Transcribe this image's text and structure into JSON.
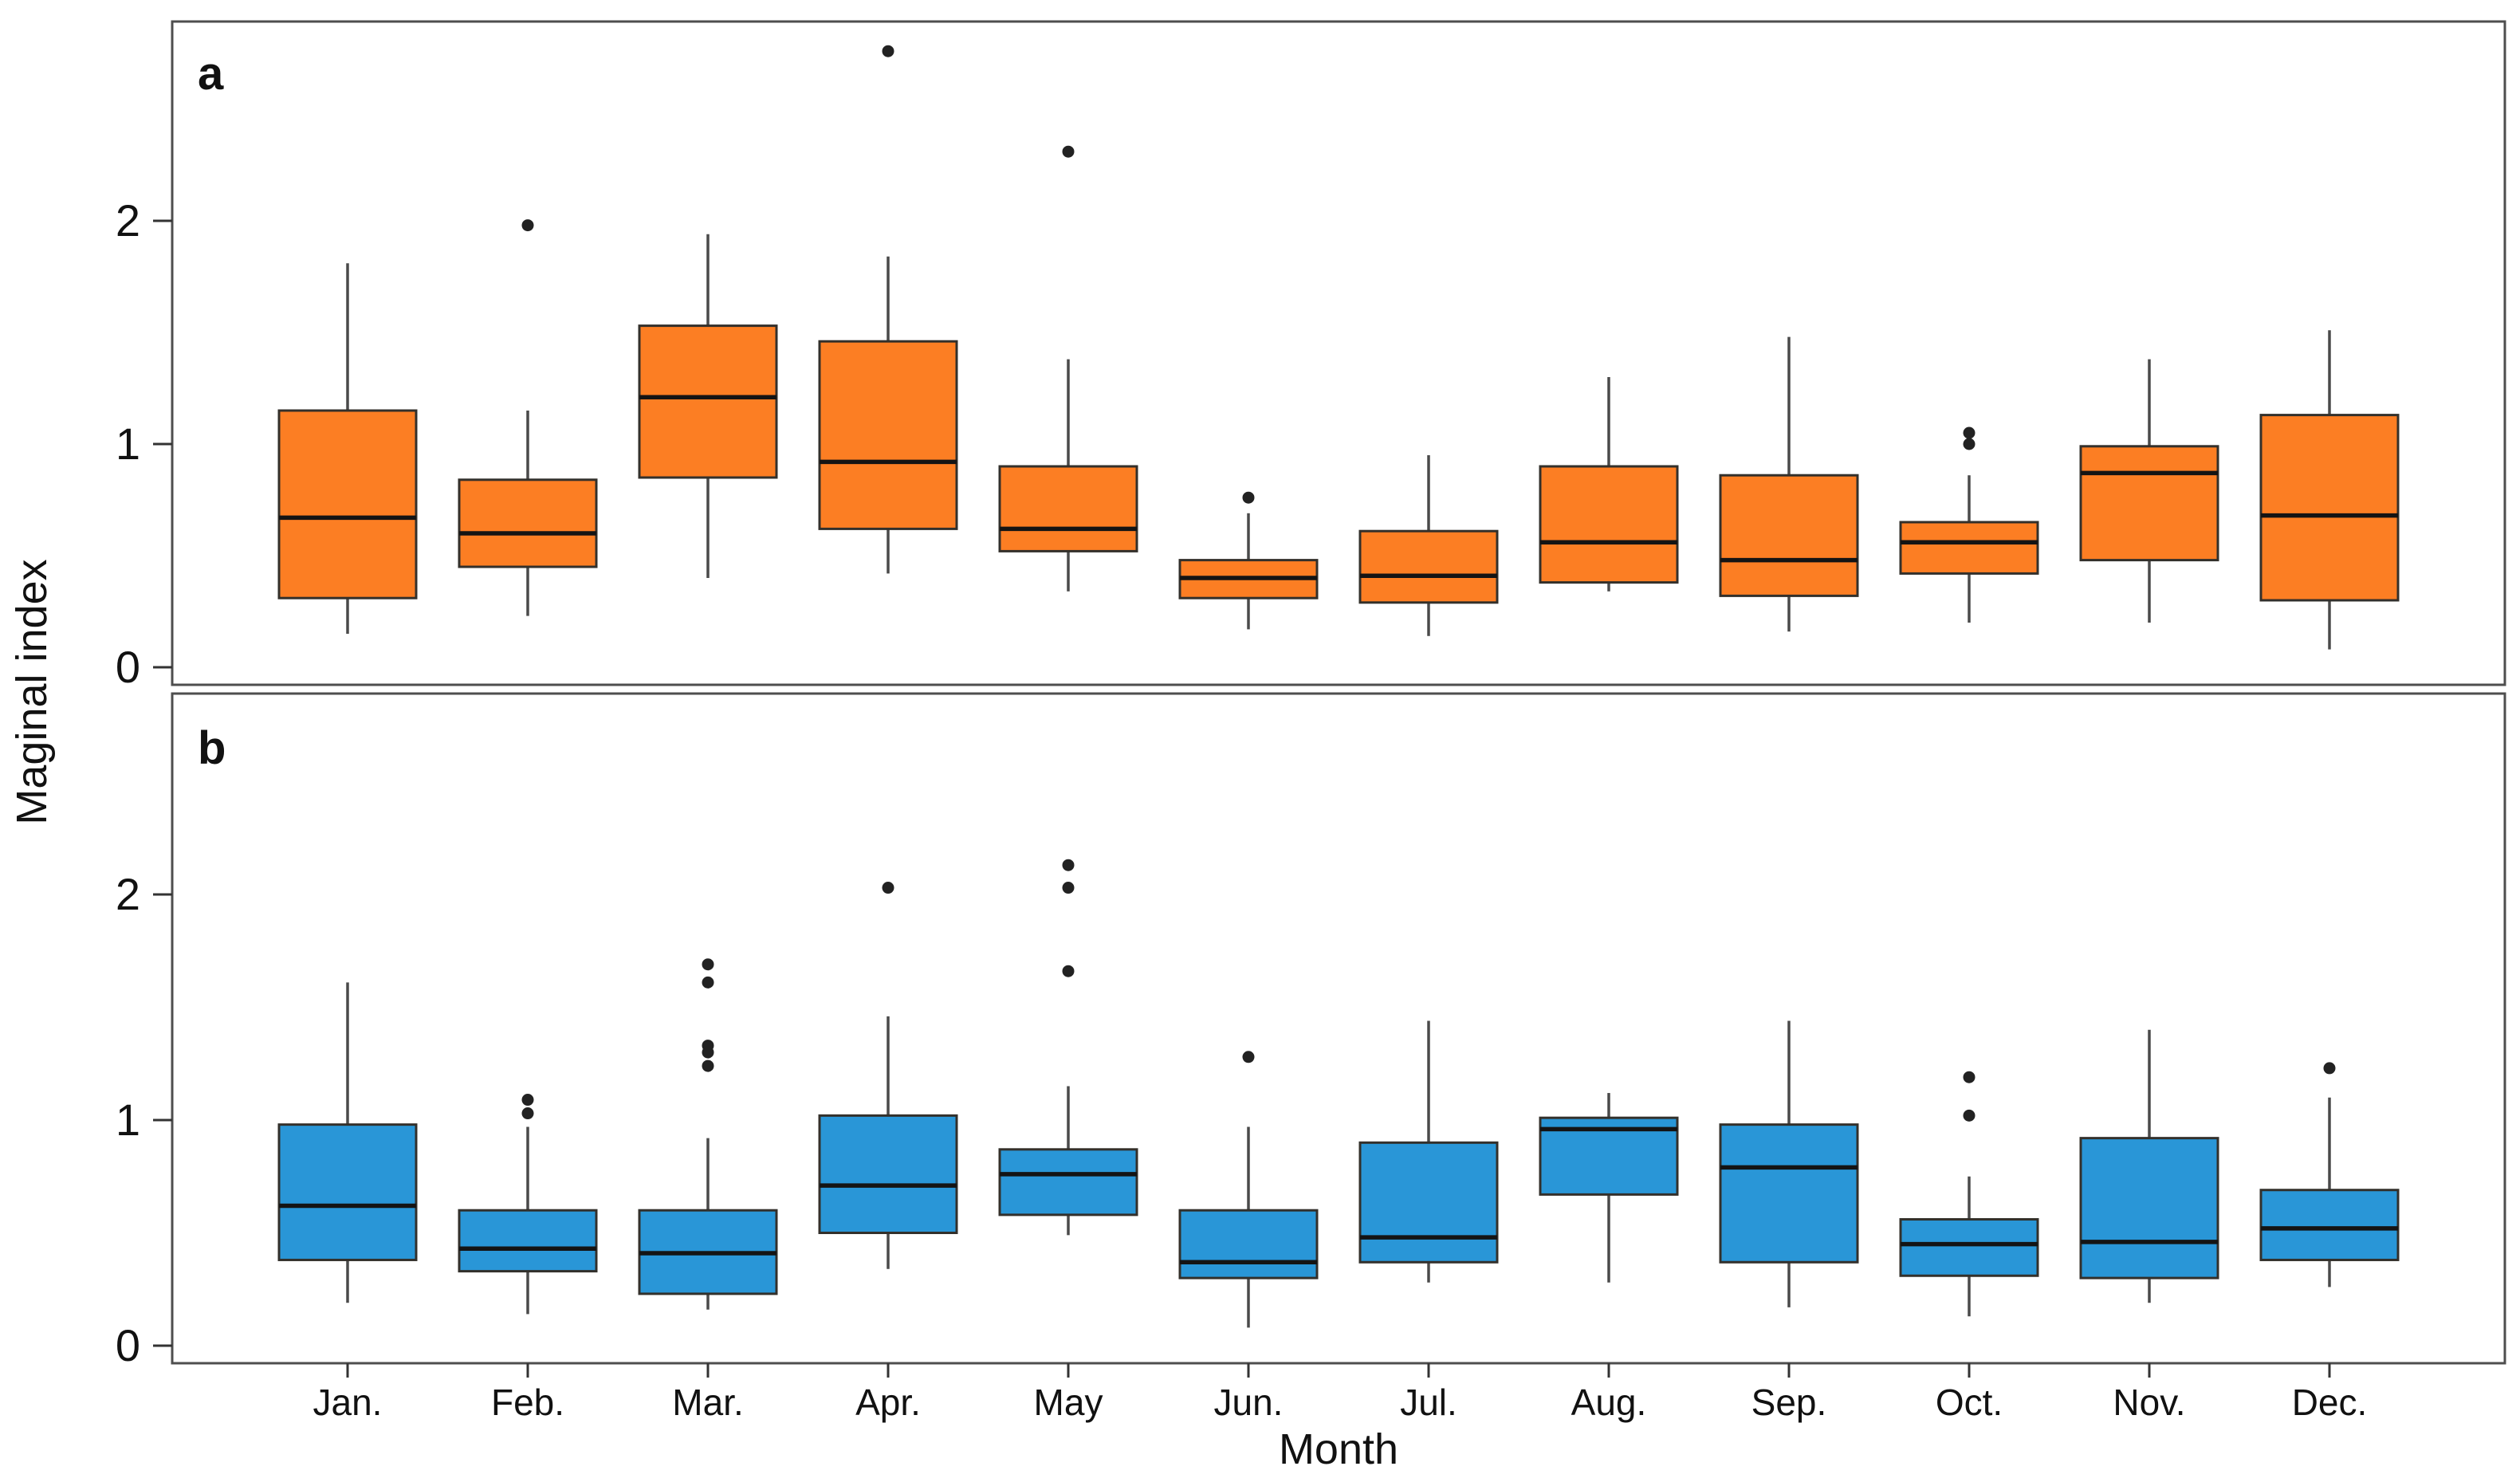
{
  "figure": {
    "y_axis_label": "Maginal index",
    "x_axis_label": "Month",
    "background": "#ffffff",
    "panel_border_color": "#4e4e4e",
    "whisker_color": "#4a4a4a",
    "box_stroke_color": "#33302b",
    "median_color": "#141414",
    "outlier_color": "#222222",
    "y_tick_labels": [
      "0",
      "1",
      "2"
    ],
    "months": [
      "Jan.",
      "Feb.",
      "Mar.",
      "Apr.",
      "May",
      "Jun.",
      "Jul.",
      "Aug.",
      "Sep.",
      "Oct.",
      "Nov.",
      "Dec."
    ]
  },
  "chart_data": [
    {
      "type": "box",
      "panel_label": "a",
      "fill_color": "#FC7E23",
      "xlabel": "Month",
      "ylabel": "Maginal index",
      "ylim": [
        -0.08,
        2.9
      ],
      "yticks": [
        0,
        1,
        2
      ],
      "grid": false,
      "legend": "none",
      "categories": [
        "Jan.",
        "Feb.",
        "Mar.",
        "Apr.",
        "May",
        "Jun.",
        "Jul.",
        "Aug.",
        "Sep.",
        "Oct.",
        "Nov.",
        "Dec."
      ],
      "boxes": [
        {
          "category": "Jan.",
          "whisker_low": 0.15,
          "q1": 0.31,
          "median": 0.67,
          "q3": 1.15,
          "whisker_high": 1.81,
          "outliers": []
        },
        {
          "category": "Feb.",
          "whisker_low": 0.23,
          "q1": 0.45,
          "median": 0.6,
          "q3": 0.84,
          "whisker_high": 1.15,
          "outliers": [
            1.98
          ]
        },
        {
          "category": "Mar.",
          "whisker_low": 0.4,
          "q1": 0.85,
          "median": 1.21,
          "q3": 1.53,
          "whisker_high": 1.94,
          "outliers": []
        },
        {
          "category": "Apr.",
          "whisker_low": 0.42,
          "q1": 0.62,
          "median": 0.92,
          "q3": 1.46,
          "whisker_high": 1.84,
          "outliers": [
            2.76
          ]
        },
        {
          "category": "May",
          "whisker_low": 0.34,
          "q1": 0.52,
          "median": 0.62,
          "q3": 0.9,
          "whisker_high": 1.38,
          "outliers": [
            2.31
          ]
        },
        {
          "category": "Jun.",
          "whisker_low": 0.17,
          "q1": 0.31,
          "median": 0.4,
          "q3": 0.48,
          "whisker_high": 0.69,
          "outliers": [
            0.76
          ]
        },
        {
          "category": "Jul.",
          "whisker_low": 0.14,
          "q1": 0.29,
          "median": 0.41,
          "q3": 0.61,
          "whisker_high": 0.95,
          "outliers": []
        },
        {
          "category": "Aug.",
          "whisker_low": 0.34,
          "q1": 0.38,
          "median": 0.56,
          "q3": 0.9,
          "whisker_high": 1.3,
          "outliers": []
        },
        {
          "category": "Sep.",
          "whisker_low": 0.16,
          "q1": 0.32,
          "median": 0.48,
          "q3": 0.86,
          "whisker_high": 1.48,
          "outliers": []
        },
        {
          "category": "Oct.",
          "whisker_low": 0.2,
          "q1": 0.42,
          "median": 0.56,
          "q3": 0.65,
          "whisker_high": 0.86,
          "outliers": [
            1.0,
            1.05
          ]
        },
        {
          "category": "Nov.",
          "whisker_low": 0.2,
          "q1": 0.48,
          "median": 0.87,
          "q3": 0.99,
          "whisker_high": 1.38,
          "outliers": []
        },
        {
          "category": "Dec.",
          "whisker_low": 0.08,
          "q1": 0.3,
          "median": 0.68,
          "q3": 1.13,
          "whisker_high": 1.51,
          "outliers": []
        }
      ]
    },
    {
      "type": "box",
      "panel_label": "b",
      "fill_color": "#2996D7",
      "xlabel": "Month",
      "ylabel": "Maginal index",
      "ylim": [
        -0.08,
        2.9
      ],
      "yticks": [
        0,
        1,
        2
      ],
      "grid": false,
      "legend": "none",
      "categories": [
        "Jan.",
        "Feb.",
        "Mar.",
        "Apr.",
        "May",
        "Jun.",
        "Jul.",
        "Aug.",
        "Sep.",
        "Oct.",
        "Nov.",
        "Dec."
      ],
      "boxes": [
        {
          "category": "Jan.",
          "whisker_low": 0.19,
          "q1": 0.38,
          "median": 0.62,
          "q3": 0.98,
          "whisker_high": 1.61,
          "outliers": []
        },
        {
          "category": "Feb.",
          "whisker_low": 0.14,
          "q1": 0.33,
          "median": 0.43,
          "q3": 0.6,
          "whisker_high": 0.97,
          "outliers": [
            1.09,
            1.03
          ]
        },
        {
          "category": "Mar.",
          "whisker_low": 0.16,
          "q1": 0.23,
          "median": 0.41,
          "q3": 0.6,
          "whisker_high": 0.92,
          "outliers": [
            1.69,
            1.61,
            1.33,
            1.3,
            1.24
          ]
        },
        {
          "category": "Apr.",
          "whisker_low": 0.34,
          "q1": 0.5,
          "median": 0.71,
          "q3": 1.02,
          "whisker_high": 1.46,
          "outliers": [
            2.03
          ]
        },
        {
          "category": "May",
          "whisker_low": 0.49,
          "q1": 0.58,
          "median": 0.76,
          "q3": 0.87,
          "whisker_high": 1.15,
          "outliers": [
            2.13,
            2.03,
            1.66
          ]
        },
        {
          "category": "Jun.",
          "whisker_low": 0.08,
          "q1": 0.3,
          "median": 0.37,
          "q3": 0.6,
          "whisker_high": 0.97,
          "outliers": [
            1.28
          ]
        },
        {
          "category": "Jul.",
          "whisker_low": 0.28,
          "q1": 0.37,
          "median": 0.48,
          "q3": 0.9,
          "whisker_high": 1.44,
          "outliers": []
        },
        {
          "category": "Aug.",
          "whisker_low": 0.28,
          "q1": 0.67,
          "median": 0.96,
          "q3": 1.01,
          "whisker_high": 1.12,
          "outliers": []
        },
        {
          "category": "Sep.",
          "whisker_low": 0.17,
          "q1": 0.37,
          "median": 0.79,
          "q3": 0.98,
          "whisker_high": 1.44,
          "outliers": []
        },
        {
          "category": "Oct.",
          "whisker_low": 0.13,
          "q1": 0.31,
          "median": 0.45,
          "q3": 0.56,
          "whisker_high": 0.75,
          "outliers": [
            1.19,
            1.02
          ]
        },
        {
          "category": "Nov.",
          "whisker_low": 0.19,
          "q1": 0.3,
          "median": 0.46,
          "q3": 0.92,
          "whisker_high": 1.4,
          "outliers": []
        },
        {
          "category": "Dec.",
          "whisker_low": 0.26,
          "q1": 0.38,
          "median": 0.52,
          "q3": 0.69,
          "whisker_high": 1.1,
          "outliers": [
            1.23
          ]
        }
      ]
    }
  ]
}
